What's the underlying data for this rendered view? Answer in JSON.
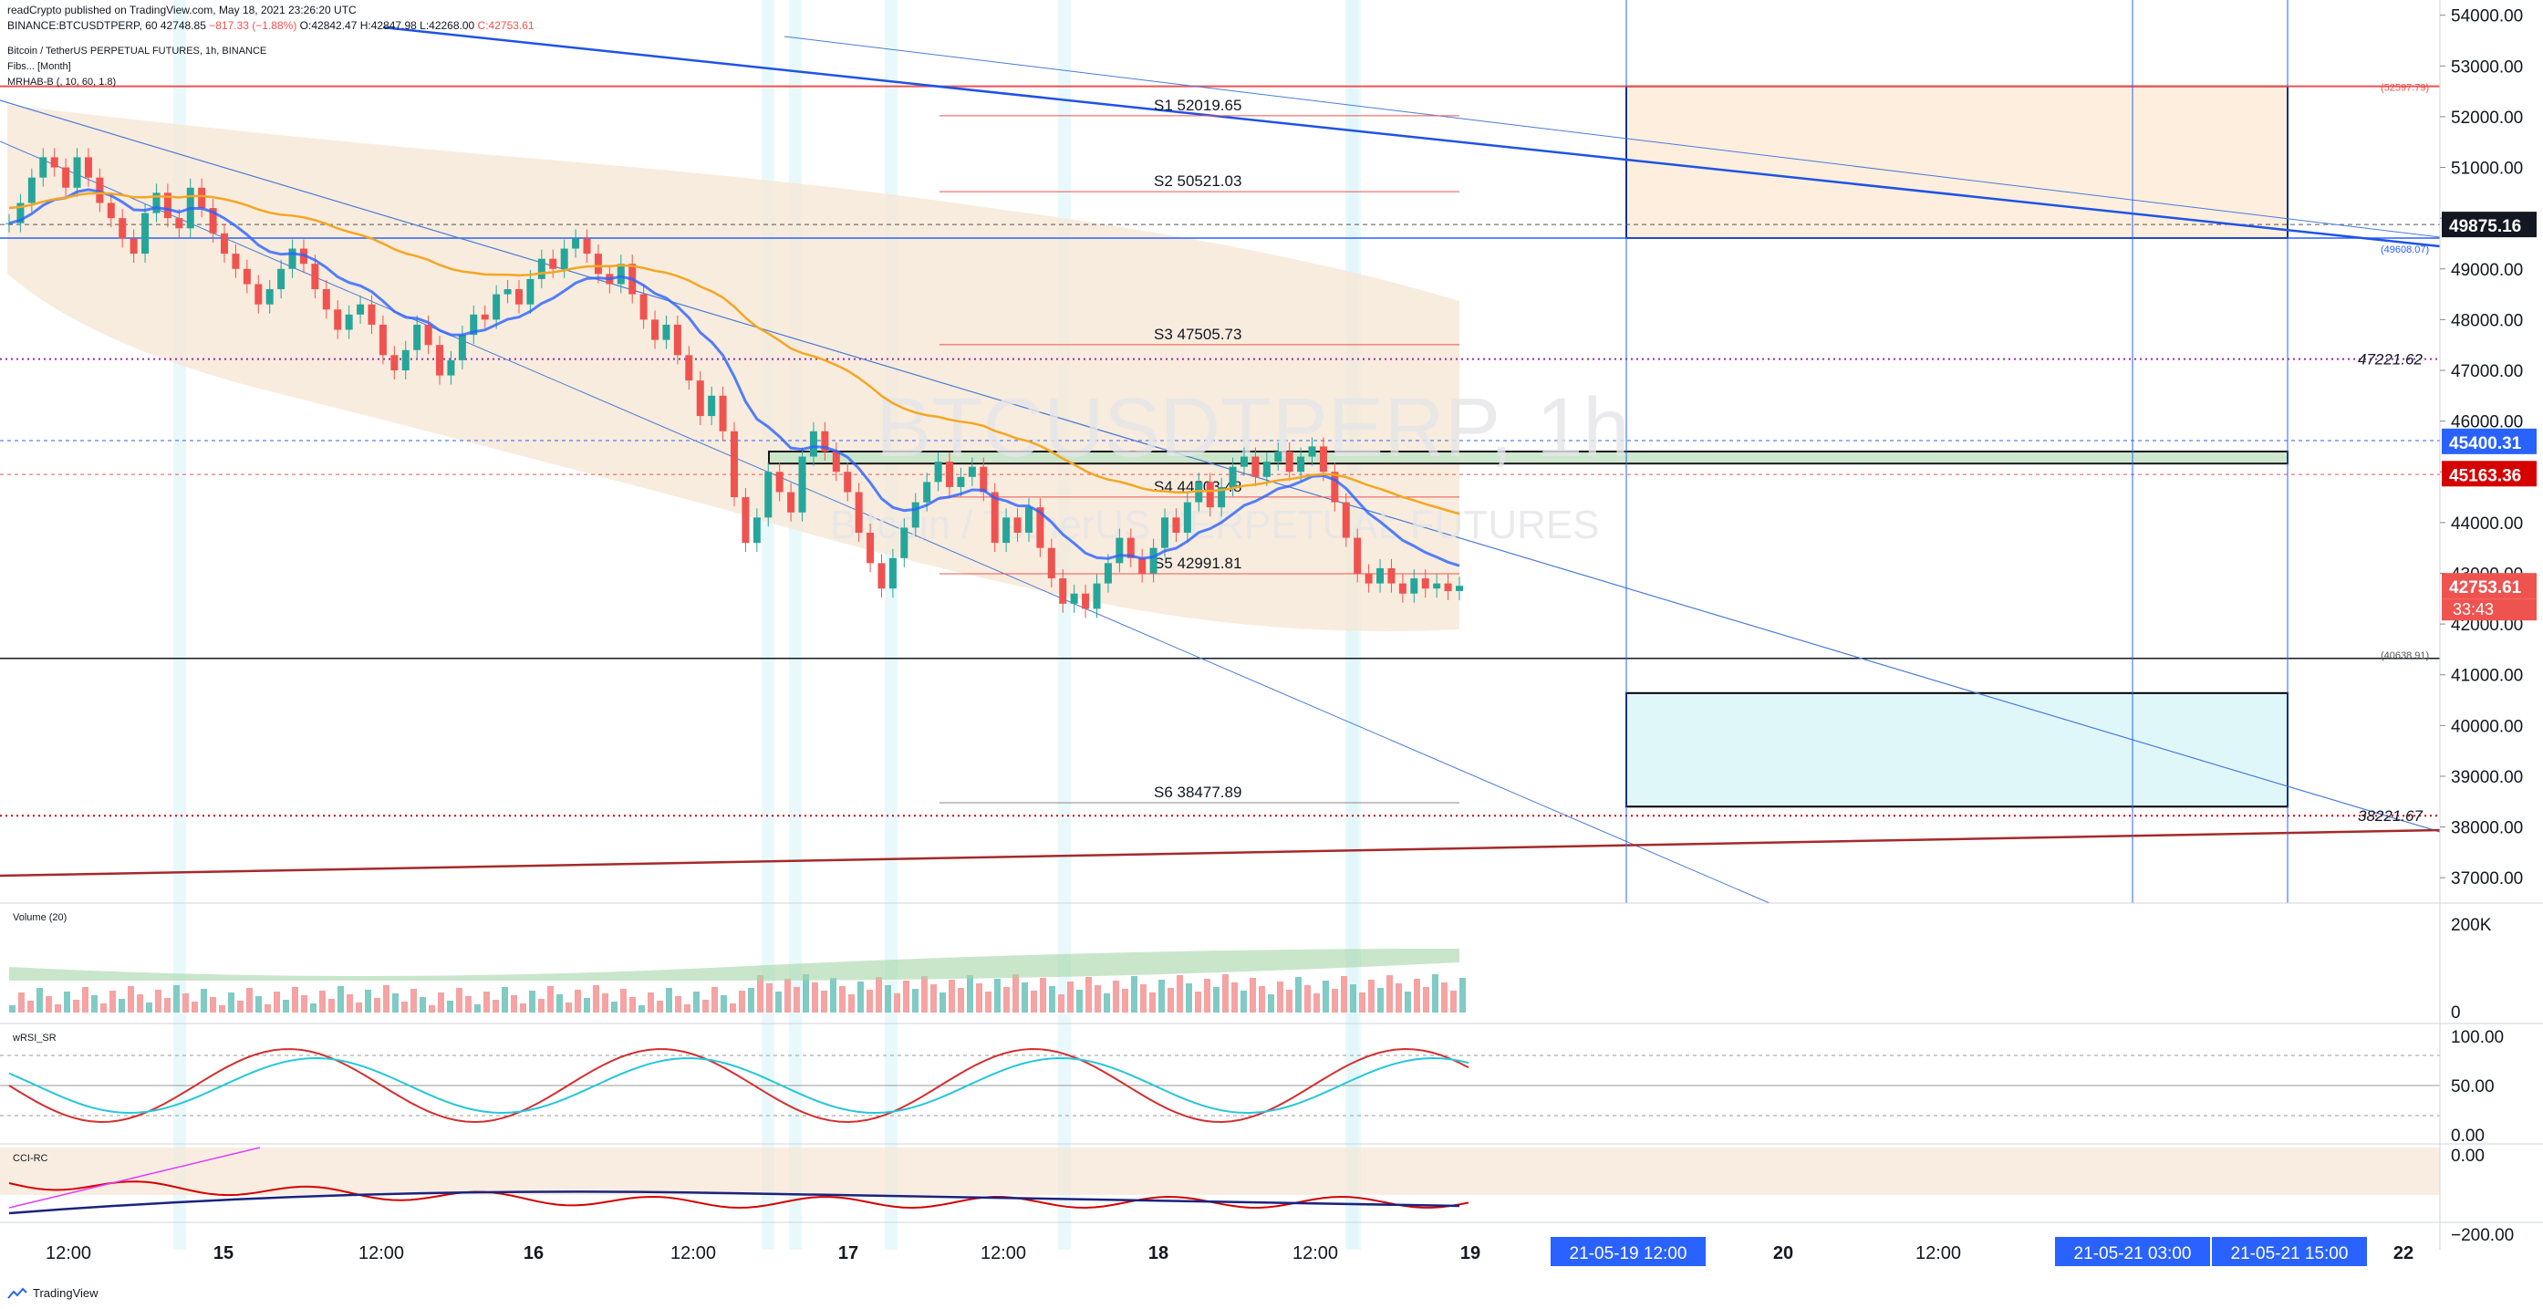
{
  "header": {
    "publisher_prefix": "readCrypto",
    "publisher_suffix": "published on TradingView.com, May 18, 2021 23:26:20 UTC",
    "symbol_line": "BINANCE:BTCUSDTPERP, 60",
    "last": "42748.85",
    "change": "−817.33 (−1.88%)",
    "open": "O:42842.47",
    "high": "H:42847.98",
    "low": "L:42268.00",
    "close": "C:42753.61"
  },
  "legend": {
    "title": "Bitcoin / TetherUS PERPETUAL FUTURES, 1h, BINANCE",
    "fibs": "Fibs... [Month]",
    "mrhab": "MRHAB-B (, 10, 60, 1.8)"
  },
  "watermark": {
    "symbol": "BTCUSDTPERP, 1h",
    "name": "Bitcoin / TetherUS PERPETUAL FUTURES"
  },
  "price_axis": {
    "ticks": [
      "54000.00",
      "53000.00",
      "52000.00",
      "51000.00",
      "50000.00",
      "49000.00",
      "48000.00",
      "47000.00",
      "46000.00",
      "45000.00",
      "44000.00",
      "43000.00",
      "42000.00",
      "41000.00",
      "40000.00",
      "39000.00",
      "38000.00",
      "37000.00"
    ],
    "badges": {
      "level_a": "49875.16",
      "level_b": "45400.31",
      "level_c": "45163.36",
      "last_price": "42753.61",
      "countdown": "33:43"
    },
    "small_labels": {
      "top_box": "(52597.79)",
      "top_box_bottom": "(49608.07)",
      "dotted_purple": "47221.62",
      "bottom_box_top": "(40638.91)",
      "dotted_red": "38221.67"
    }
  },
  "pivots": [
    "S1 52019.65",
    "S2 50521.03",
    "S3 47505.73",
    "S4 44503.48",
    "S5 42991.81",
    "S6 38477.89"
  ],
  "time_axis": {
    "labels": [
      "12:00",
      "15",
      "12:00",
      "16",
      "12:00",
      "17",
      "12:00",
      "18",
      "12:00",
      "19",
      "20",
      "12:00",
      "22"
    ],
    "badges": [
      "21-05-19  12:00",
      "21-05-21  03:00",
      "21-05-21  15:00"
    ]
  },
  "panels": {
    "volume": {
      "label": "Volume (20)",
      "ticks": [
        "200K",
        "0"
      ]
    },
    "wrsi": {
      "label": "wRSI_SR",
      "ticks": [
        "100.00",
        "50.00",
        "0.00"
      ]
    },
    "cci": {
      "label": "CCI-RC",
      "ticks": [
        "0.00",
        "−200.00"
      ]
    }
  },
  "footer": {
    "brand": "TradingView"
  },
  "colors": {
    "up": "#26a69a",
    "down": "#ef5350",
    "blue_line": "#2962ff",
    "orange_line": "#f5a623",
    "cloud": "#f5e6d3",
    "green_box": "#c8e6c9",
    "cyan_box": "#e0f7fa",
    "orange_box": "#fdeede"
  },
  "chart_data": {
    "type": "candlestick",
    "symbol": "BINANCE:BTCUSDTPERP",
    "interval": "1h",
    "ylim": [
      36500,
      54300
    ],
    "price_path": [
      49900,
      50300,
      50800,
      51200,
      51000,
      50600,
      51200,
      50800,
      50300,
      50000,
      49600,
      49300,
      50100,
      50500,
      50000,
      49800,
      50600,
      50200,
      49700,
      49300,
      49000,
      48700,
      48300,
      48600,
      49000,
      49400,
      49100,
      48600,
      48200,
      47800,
      48100,
      48300,
      47900,
      47300,
      47000,
      47400,
      47900,
      47500,
      46900,
      47200,
      47700,
      48100,
      48000,
      48500,
      48600,
      48300,
      48800,
      49200,
      49000,
      49400,
      49600,
      49300,
      48900,
      48700,
      49100,
      48500,
      48000,
      47600,
      47900,
      47300,
      46800,
      46100,
      46500,
      45800,
      44500,
      43600,
      44100,
      45000,
      44600,
      44200,
      45300,
      45800,
      45400,
      45000,
      44600,
      43800,
      43200,
      42700,
      43300,
      43900,
      44400,
      44800,
      45200,
      44700,
      44900,
      45100,
      44600,
      43600,
      44100,
      43800,
      44300,
      43500,
      42900,
      42400,
      42600,
      42300,
      42800,
      43200,
      43700,
      43300,
      43000,
      43500,
      44100,
      43800,
      44400,
      44800,
      44300,
      44700,
      45100,
      45300,
      44900,
      45200,
      45400,
      45000,
      45300,
      45500,
      45000,
      44400,
      43700,
      43000,
      42800,
      43100,
      42800,
      42600,
      42900,
      42700,
      42800,
      42650,
      42753.61
    ],
    "horizontal_levels": [
      {
        "name": "top_box_top",
        "value": 52597.79
      },
      {
        "name": "top_box_bottom",
        "value": 49608.07
      },
      {
        "name": "level_a",
        "value": 49875.16
      },
      {
        "name": "dotted_purple",
        "value": 47221.62
      },
      {
        "name": "green_zone_top",
        "value": 45400.31
      },
      {
        "name": "green_zone_bottom",
        "value": 45163.36
      },
      {
        "name": "bottom_box_top",
        "value": 40638.91
      },
      {
        "name": "dotted_red",
        "value": 38221.67
      }
    ],
    "pivot_values": [
      52019.65,
      50521.03,
      47505.73,
      44503.48,
      42991.81,
      38477.89
    ],
    "last_price": 42753.61,
    "x_labels": [
      "12:00",
      "15",
      "12:00",
      "16",
      "12:00",
      "17",
      "12:00",
      "18",
      "12:00",
      "19",
      "20",
      "12:00",
      "22"
    ]
  }
}
